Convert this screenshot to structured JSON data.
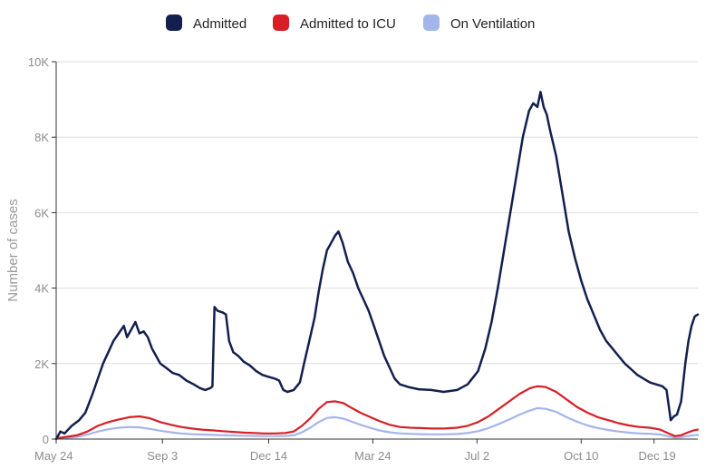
{
  "chart_data": {
    "type": "line",
    "title": "",
    "xlabel": "",
    "ylabel": "Number of cases",
    "ylim": [
      0,
      10000
    ],
    "xlim": [
      0,
      940
    ],
    "grid": true,
    "legend_position": "top-center",
    "x_ticks": [
      {
        "label": "May 24",
        "day": 0
      },
      {
        "label": "Sep 3",
        "day": 102
      },
      {
        "label": "Dec 14",
        "day": 204
      },
      {
        "label": "Mar 24",
        "day": 304
      },
      {
        "label": "Jul 2",
        "day": 404
      },
      {
        "label": "Oct 10",
        "day": 504
      },
      {
        "label": "Dec 19",
        "day": 574
      }
    ],
    "y_ticks": [
      {
        "label": "0",
        "value": 0
      },
      {
        "label": "2K",
        "value": 2000
      },
      {
        "label": "4K",
        "value": 4000
      },
      {
        "label": "6K",
        "value": 6000
      },
      {
        "label": "8K",
        "value": 8000
      },
      {
        "label": "10K",
        "value": 10000
      }
    ],
    "series": [
      {
        "name": "Admitted",
        "color": "#13204f",
        "points": [
          [
            0,
            0
          ],
          [
            4,
            200
          ],
          [
            8,
            150
          ],
          [
            15,
            350
          ],
          [
            22,
            500
          ],
          [
            28,
            700
          ],
          [
            35,
            1200
          ],
          [
            40,
            1600
          ],
          [
            45,
            2000
          ],
          [
            50,
            2300
          ],
          [
            55,
            2600
          ],
          [
            60,
            2800
          ],
          [
            65,
            3000
          ],
          [
            68,
            2700
          ],
          [
            72,
            2900
          ],
          [
            76,
            3100
          ],
          [
            80,
            2800
          ],
          [
            84,
            2850
          ],
          [
            88,
            2700
          ],
          [
            92,
            2400
          ],
          [
            96,
            2200
          ],
          [
            100,
            2000
          ],
          [
            105,
            1900
          ],
          [
            112,
            1750
          ],
          [
            118,
            1700
          ],
          [
            125,
            1550
          ],
          [
            132,
            1450
          ],
          [
            138,
            1350
          ],
          [
            143,
            1300
          ],
          [
            148,
            1350
          ],
          [
            150,
            1400
          ],
          [
            152,
            3500
          ],
          [
            155,
            3400
          ],
          [
            160,
            3350
          ],
          [
            163,
            3300
          ],
          [
            166,
            2600
          ],
          [
            170,
            2300
          ],
          [
            175,
            2200
          ],
          [
            180,
            2050
          ],
          [
            186,
            1950
          ],
          [
            192,
            1800
          ],
          [
            198,
            1700
          ],
          [
            204,
            1650
          ],
          [
            210,
            1600
          ],
          [
            214,
            1550
          ],
          [
            218,
            1300
          ],
          [
            222,
            1250
          ],
          [
            228,
            1300
          ],
          [
            234,
            1500
          ],
          [
            238,
            2000
          ],
          [
            243,
            2600
          ],
          [
            248,
            3200
          ],
          [
            252,
            3900
          ],
          [
            256,
            4500
          ],
          [
            260,
            5000
          ],
          [
            264,
            5200
          ],
          [
            268,
            5400
          ],
          [
            271,
            5500
          ],
          [
            275,
            5200
          ],
          [
            280,
            4700
          ],
          [
            285,
            4400
          ],
          [
            290,
            4000
          ],
          [
            295,
            3700
          ],
          [
            300,
            3400
          ],
          [
            305,
            3000
          ],
          [
            310,
            2600
          ],
          [
            315,
            2200
          ],
          [
            320,
            1900
          ],
          [
            325,
            1600
          ],
          [
            330,
            1450
          ],
          [
            338,
            1380
          ],
          [
            348,
            1320
          ],
          [
            360,
            1300
          ],
          [
            372,
            1250
          ],
          [
            385,
            1300
          ],
          [
            395,
            1450
          ],
          [
            405,
            1800
          ],
          [
            412,
            2400
          ],
          [
            418,
            3100
          ],
          [
            424,
            4000
          ],
          [
            430,
            5000
          ],
          [
            436,
            6000
          ],
          [
            442,
            7000
          ],
          [
            448,
            8000
          ],
          [
            454,
            8700
          ],
          [
            458,
            8900
          ],
          [
            462,
            8800
          ],
          [
            465,
            9200
          ],
          [
            468,
            8800
          ],
          [
            471,
            8600
          ],
          [
            474,
            8200
          ],
          [
            480,
            7500
          ],
          [
            486,
            6500
          ],
          [
            492,
            5500
          ],
          [
            498,
            4800
          ],
          [
            504,
            4200
          ],
          [
            510,
            3700
          ],
          [
            516,
            3300
          ],
          [
            522,
            2900
          ],
          [
            528,
            2600
          ],
          [
            534,
            2400
          ],
          [
            540,
            2200
          ],
          [
            546,
            2000
          ],
          [
            552,
            1850
          ],
          [
            558,
            1700
          ],
          [
            564,
            1600
          ],
          [
            570,
            1500
          ],
          [
            576,
            1450
          ],
          [
            582,
            1400
          ],
          [
            586,
            1300
          ],
          [
            588,
            900
          ],
          [
            590,
            500
          ],
          [
            593,
            600
          ],
          [
            596,
            650
          ],
          [
            600,
            1000
          ],
          [
            604,
            2000
          ],
          [
            607,
            2600
          ],
          [
            610,
            3000
          ],
          [
            613,
            3250
          ],
          [
            616,
            3300
          ]
        ]
      },
      {
        "name": "Admitted to ICU",
        "color": "#d81f26",
        "points": [
          [
            0,
            20
          ],
          [
            10,
            60
          ],
          [
            20,
            100
          ],
          [
            30,
            200
          ],
          [
            40,
            350
          ],
          [
            50,
            450
          ],
          [
            60,
            520
          ],
          [
            70,
            580
          ],
          [
            80,
            600
          ],
          [
            90,
            550
          ],
          [
            100,
            450
          ],
          [
            110,
            380
          ],
          [
            120,
            320
          ],
          [
            130,
            280
          ],
          [
            140,
            250
          ],
          [
            150,
            230
          ],
          [
            160,
            210
          ],
          [
            170,
            190
          ],
          [
            180,
            170
          ],
          [
            190,
            160
          ],
          [
            200,
            150
          ],
          [
            210,
            150
          ],
          [
            220,
            160
          ],
          [
            228,
            200
          ],
          [
            236,
            350
          ],
          [
            244,
            550
          ],
          [
            252,
            800
          ],
          [
            260,
            980
          ],
          [
            268,
            1000
          ],
          [
            276,
            950
          ],
          [
            284,
            820
          ],
          [
            292,
            700
          ],
          [
            300,
            600
          ],
          [
            310,
            480
          ],
          [
            320,
            380
          ],
          [
            330,
            320
          ],
          [
            340,
            300
          ],
          [
            350,
            290
          ],
          [
            360,
            280
          ],
          [
            372,
            280
          ],
          [
            385,
            300
          ],
          [
            395,
            350
          ],
          [
            405,
            450
          ],
          [
            415,
            600
          ],
          [
            425,
            800
          ],
          [
            435,
            1000
          ],
          [
            445,
            1200
          ],
          [
            455,
            1350
          ],
          [
            462,
            1400
          ],
          [
            470,
            1380
          ],
          [
            480,
            1250
          ],
          [
            490,
            1050
          ],
          [
            500,
            850
          ],
          [
            510,
            700
          ],
          [
            520,
            580
          ],
          [
            530,
            500
          ],
          [
            540,
            420
          ],
          [
            550,
            360
          ],
          [
            560,
            320
          ],
          [
            570,
            300
          ],
          [
            580,
            250
          ],
          [
            588,
            150
          ],
          [
            594,
            80
          ],
          [
            600,
            100
          ],
          [
            606,
            170
          ],
          [
            612,
            230
          ],
          [
            616,
            250
          ]
        ]
      },
      {
        "name": "On Ventilation",
        "color": "#a3b5ea",
        "points": [
          [
            0,
            10
          ],
          [
            10,
            30
          ],
          [
            20,
            60
          ],
          [
            30,
            120
          ],
          [
            40,
            200
          ],
          [
            50,
            260
          ],
          [
            60,
            300
          ],
          [
            70,
            320
          ],
          [
            80,
            310
          ],
          [
            90,
            270
          ],
          [
            100,
            220
          ],
          [
            110,
            180
          ],
          [
            120,
            150
          ],
          [
            130,
            130
          ],
          [
            140,
            120
          ],
          [
            150,
            110
          ],
          [
            160,
            100
          ],
          [
            170,
            95
          ],
          [
            180,
            90
          ],
          [
            190,
            85
          ],
          [
            200,
            80
          ],
          [
            210,
            80
          ],
          [
            220,
            85
          ],
          [
            228,
            100
          ],
          [
            236,
            180
          ],
          [
            244,
            300
          ],
          [
            252,
            450
          ],
          [
            260,
            560
          ],
          [
            268,
            580
          ],
          [
            276,
            540
          ],
          [
            284,
            460
          ],
          [
            292,
            380
          ],
          [
            300,
            310
          ],
          [
            310,
            230
          ],
          [
            320,
            180
          ],
          [
            330,
            150
          ],
          [
            340,
            140
          ],
          [
            350,
            130
          ],
          [
            360,
            125
          ],
          [
            372,
            125
          ],
          [
            385,
            135
          ],
          [
            395,
            160
          ],
          [
            405,
            210
          ],
          [
            415,
            290
          ],
          [
            425,
            400
          ],
          [
            435,
            520
          ],
          [
            445,
            650
          ],
          [
            455,
            760
          ],
          [
            462,
            820
          ],
          [
            470,
            800
          ],
          [
            480,
            720
          ],
          [
            490,
            580
          ],
          [
            500,
            460
          ],
          [
            510,
            360
          ],
          [
            520,
            290
          ],
          [
            530,
            240
          ],
          [
            540,
            200
          ],
          [
            550,
            170
          ],
          [
            560,
            150
          ],
          [
            570,
            140
          ],
          [
            580,
            120
          ],
          [
            588,
            70
          ],
          [
            594,
            40
          ],
          [
            600,
            50
          ],
          [
            606,
            80
          ],
          [
            612,
            100
          ],
          [
            616,
            110
          ]
        ]
      }
    ]
  }
}
